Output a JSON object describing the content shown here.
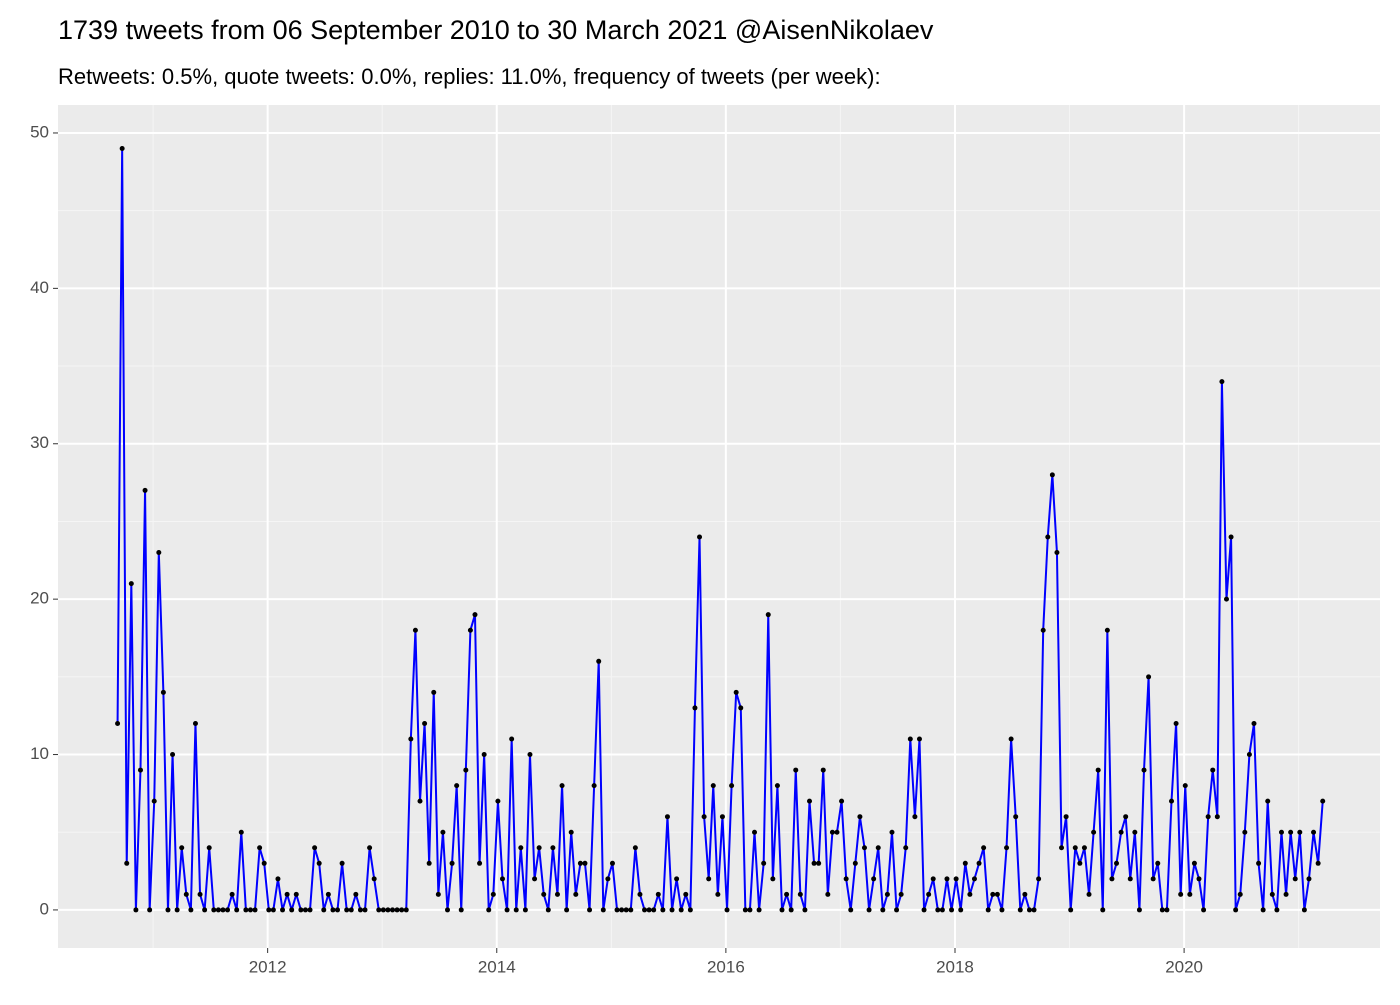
{
  "chart_data": {
    "type": "line",
    "title": "1739 tweets from 06 September 2010 to 30 March 2021 @AisenNikolaev",
    "subtitle": "Retweets: 0.5%, quote tweets: 0.0%, replies: 11.0%, frequency of tweets (per week):",
    "x": [
      2010.69,
      2010.73,
      2010.77,
      2010.81,
      2010.85,
      2010.89,
      2010.93,
      2010.97,
      2011.01,
      2011.05,
      2011.09,
      2011.13,
      2011.17,
      2011.21,
      2011.25,
      2011.29,
      2011.33,
      2011.37,
      2011.41,
      2011.45,
      2011.49,
      2011.53,
      2011.57,
      2011.61,
      2011.65,
      2011.69,
      2011.73,
      2011.77,
      2011.81,
      2011.85,
      2011.89,
      2011.93,
      2011.97,
      2012.01,
      2012.05,
      2012.09,
      2012.13,
      2012.17,
      2012.21,
      2012.25,
      2012.29,
      2012.33,
      2012.37,
      2012.41,
      2012.45,
      2012.49,
      2012.53,
      2012.57,
      2012.61,
      2012.65,
      2012.69,
      2012.73,
      2012.77,
      2012.81,
      2012.85,
      2012.89,
      2012.93,
      2012.97,
      2013.01,
      2013.05,
      2013.09,
      2013.13,
      2013.17,
      2013.21,
      2013.25,
      2013.29,
      2013.33,
      2013.37,
      2013.41,
      2013.45,
      2013.49,
      2013.53,
      2013.57,
      2013.61,
      2013.65,
      2013.69,
      2013.73,
      2013.77,
      2013.81,
      2013.85,
      2013.89,
      2013.93,
      2013.97,
      2014.01,
      2014.05,
      2014.09,
      2014.13,
      2014.17,
      2014.21,
      2014.25,
      2014.29,
      2014.33,
      2014.37,
      2014.41,
      2014.45,
      2014.49,
      2014.53,
      2014.57,
      2014.61,
      2014.65,
      2014.69,
      2014.73,
      2014.77,
      2014.81,
      2014.85,
      2014.89,
      2014.93,
      2014.97,
      2015.01,
      2015.05,
      2015.09,
      2015.13,
      2015.17,
      2015.21,
      2015.25,
      2015.29,
      2015.33,
      2015.37,
      2015.41,
      2015.45,
      2015.49,
      2015.53,
      2015.57,
      2015.61,
      2015.65,
      2015.69,
      2015.73,
      2015.77,
      2015.81,
      2015.85,
      2015.89,
      2015.93,
      2015.97,
      2016.01,
      2016.05,
      2016.09,
      2016.13,
      2016.17,
      2016.21,
      2016.25,
      2016.29,
      2016.33,
      2016.37,
      2016.41,
      2016.45,
      2016.49,
      2016.53,
      2016.57,
      2016.61,
      2016.65,
      2016.69,
      2016.73,
      2016.77,
      2016.81,
      2016.85,
      2016.89,
      2016.93,
      2016.97,
      2017.01,
      2017.05,
      2017.09,
      2017.13,
      2017.17,
      2017.21,
      2017.25,
      2017.29,
      2017.33,
      2017.37,
      2017.41,
      2017.45,
      2017.49,
      2017.53,
      2017.57,
      2017.61,
      2017.65,
      2017.69,
      2017.73,
      2017.77,
      2017.81,
      2017.85,
      2017.89,
      2017.93,
      2017.97,
      2018.01,
      2018.05,
      2018.09,
      2018.13,
      2018.17,
      2018.21,
      2018.25,
      2018.29,
      2018.33,
      2018.37,
      2018.41,
      2018.45,
      2018.49,
      2018.53,
      2018.57,
      2018.61,
      2018.65,
      2018.69,
      2018.73,
      2018.77,
      2018.81,
      2018.85,
      2018.89,
      2018.93,
      2018.97,
      2019.01,
      2019.05,
      2019.09,
      2019.13,
      2019.17,
      2019.21,
      2019.25,
      2019.29,
      2019.33,
      2019.37,
      2019.41,
      2019.45,
      2019.49,
      2019.53,
      2019.57,
      2019.61,
      2019.65,
      2019.69,
      2019.73,
      2019.77,
      2019.81,
      2019.85,
      2019.89,
      2019.93,
      2019.97,
      2020.01,
      2020.05,
      2020.09,
      2020.13,
      2020.17,
      2020.21,
      2020.25,
      2020.29,
      2020.33,
      2020.37,
      2020.41,
      2020.45,
      2020.49,
      2020.53,
      2020.57,
      2020.61,
      2020.65,
      2020.69,
      2020.73,
      2020.77,
      2020.81,
      2020.85,
      2020.89,
      2020.93,
      2020.97,
      2021.01,
      2021.05,
      2021.09,
      2021.13,
      2021.17,
      2021.21
    ],
    "values": [
      12,
      49,
      3,
      21,
      0,
      9,
      27,
      0,
      7,
      23,
      14,
      0,
      10,
      0,
      4,
      1,
      0,
      12,
      1,
      0,
      4,
      0,
      0,
      0,
      0,
      1,
      0,
      5,
      0,
      0,
      0,
      4,
      3,
      0,
      0,
      2,
      0,
      1,
      0,
      1,
      0,
      0,
      0,
      4,
      3,
      0,
      1,
      0,
      0,
      3,
      0,
      0,
      1,
      0,
      0,
      4,
      2,
      0,
      0,
      0,
      0,
      0,
      0,
      0,
      11,
      18,
      7,
      12,
      3,
      14,
      1,
      5,
      0,
      3,
      8,
      0,
      9,
      18,
      19,
      3,
      10,
      0,
      1,
      7,
      2,
      0,
      11,
      0,
      4,
      0,
      10,
      2,
      4,
      1,
      0,
      4,
      1,
      8,
      0,
      5,
      1,
      3,
      3,
      0,
      8,
      16,
      0,
      2,
      3,
      0,
      0,
      0,
      0,
      4,
      1,
      0,
      0,
      0,
      1,
      0,
      6,
      0,
      2,
      0,
      1,
      0,
      13,
      24,
      6,
      2,
      8,
      1,
      6,
      0,
      8,
      14,
      13,
      0,
      0,
      5,
      0,
      3,
      19,
      2,
      8,
      0,
      1,
      0,
      9,
      1,
      0,
      7,
      3,
      3,
      9,
      1,
      5,
      5,
      7,
      2,
      0,
      3,
      6,
      4,
      0,
      2,
      4,
      0,
      1,
      5,
      0,
      1,
      4,
      11,
      6,
      11,
      0,
      1,
      2,
      0,
      0,
      2,
      0,
      2,
      0,
      3,
      1,
      2,
      3,
      4,
      0,
      1,
      1,
      0,
      4,
      11,
      6,
      0,
      1,
      0,
      0,
      2,
      18,
      24,
      28,
      23,
      4,
      6,
      0,
      4,
      3,
      4,
      1,
      5,
      9,
      0,
      18,
      2,
      3,
      5,
      6,
      2,
      5,
      0,
      9,
      15,
      2,
      3,
      0,
      0,
      7,
      12,
      1,
      8,
      1,
      3,
      2,
      0,
      6,
      9,
      6,
      34,
      20,
      24,
      0,
      1,
      5,
      10,
      12,
      3,
      0,
      7,
      1,
      0,
      5,
      1,
      5,
      2,
      5,
      0,
      2,
      5,
      3,
      7
    ],
    "line_color": "#0000ff",
    "point_color": "#000000",
    "xlim": [
      2010.17,
      2021.71
    ],
    "xticks": [
      2012,
      2014,
      2016,
      2018,
      2020
    ],
    "ylim": [
      -2.45,
      51.8
    ],
    "yticks": [
      0,
      10,
      20,
      30,
      40,
      50
    ],
    "grid": true
  }
}
